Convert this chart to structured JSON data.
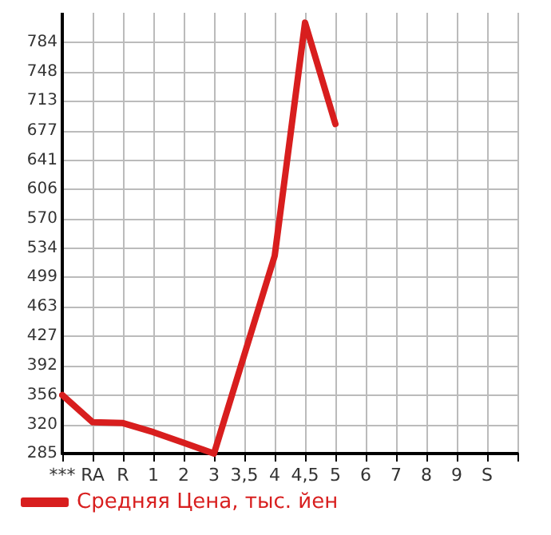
{
  "chart_data": {
    "type": "line",
    "categories": [
      "***",
      "RA",
      "R",
      "1",
      "2",
      "3",
      "3,5",
      "4",
      "4,5",
      "5",
      "6",
      "7",
      "8",
      "9",
      "S",
      null
    ],
    "series": [
      {
        "name": "Средняя Цена, тыс. йен",
        "color": "#d81e1e",
        "values": [
          356,
          323,
          322,
          311,
          298,
          285,
          405,
          525,
          808,
          685,
          null,
          null,
          null,
          null,
          null,
          null
        ]
      }
    ],
    "ylim": [
      285,
      820
    ],
    "yticks": [
      285,
      320,
      356,
      392,
      427,
      463,
      499,
      534,
      570,
      606,
      641,
      677,
      713,
      748,
      784
    ],
    "grid": true,
    "legend": "bottom left",
    "marker": "none",
    "line_style": "solid"
  }
}
